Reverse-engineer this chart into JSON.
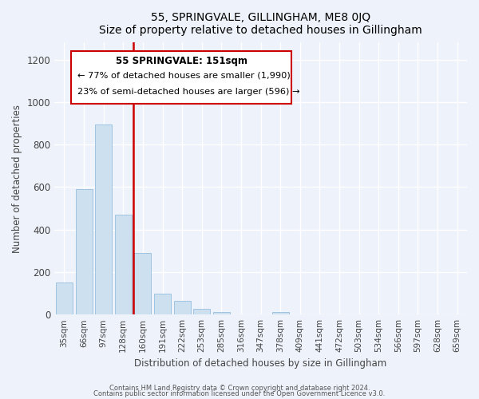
{
  "title": "55, SPRINGVALE, GILLINGHAM, ME8 0JQ",
  "subtitle": "Size of property relative to detached houses in Gillingham",
  "xlabel": "Distribution of detached houses by size in Gillingham",
  "ylabel": "Number of detached properties",
  "categories": [
    "35sqm",
    "66sqm",
    "97sqm",
    "128sqm",
    "160sqm",
    "191sqm",
    "222sqm",
    "253sqm",
    "285sqm",
    "316sqm",
    "347sqm",
    "378sqm",
    "409sqm",
    "441sqm",
    "472sqm",
    "503sqm",
    "534sqm",
    "566sqm",
    "597sqm",
    "628sqm",
    "659sqm"
  ],
  "values": [
    150,
    590,
    895,
    470,
    290,
    100,
    63,
    28,
    13,
    0,
    0,
    12,
    0,
    0,
    0,
    0,
    0,
    0,
    0,
    0,
    0
  ],
  "bar_color": "#cce0f0",
  "bar_edge_color": "#a0c4e0",
  "redline_x": 3.5,
  "annotation_title": "55 SPRINGVALE: 151sqm",
  "annotation_line1": "← 77% of detached houses are smaller (1,990)",
  "annotation_line2": "23% of semi-detached houses are larger (596) →",
  "annotation_box_color": "#ffffff",
  "annotation_box_edge": "#cc0000",
  "redline_color": "#cc0000",
  "ylim": [
    0,
    1280
  ],
  "yticks": [
    0,
    200,
    400,
    600,
    800,
    1000,
    1200
  ],
  "footer1": "Contains HM Land Registry data © Crown copyright and database right 2024.",
  "footer2": "Contains public sector information licensed under the Open Government Licence v3.0.",
  "bg_color": "#eef2fa"
}
